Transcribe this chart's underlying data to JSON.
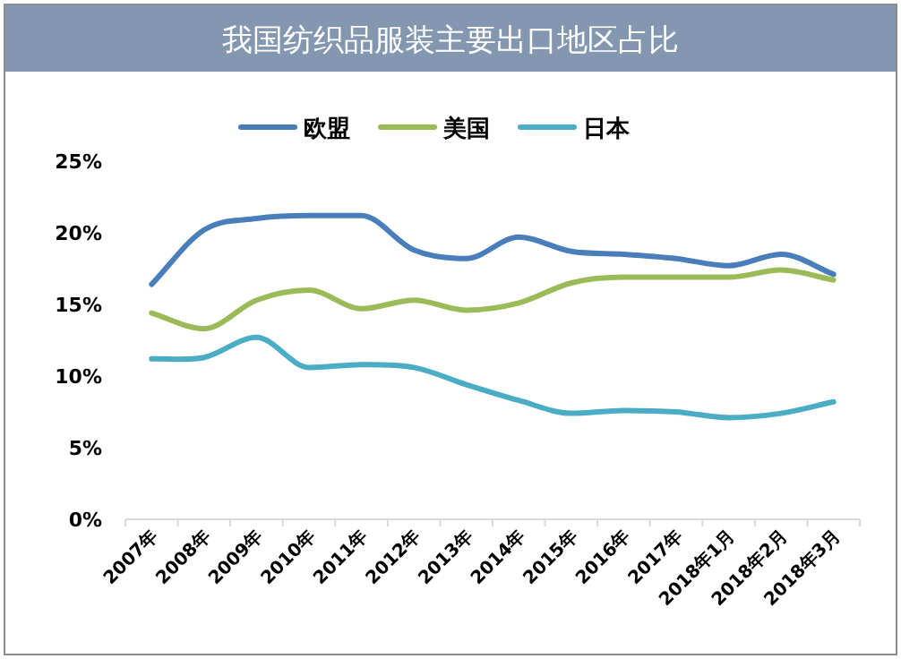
{
  "chart_data": {
    "type": "line",
    "title": "我国纺织品服装主要出口地区占比",
    "categories": [
      "2007年",
      "2008年",
      "2009年",
      "2010年",
      "2011年",
      "2012年",
      "2013年",
      "2014年",
      "2015年",
      "2016年",
      "2017年",
      "2018年1月",
      "2018年2月",
      "2018年3月"
    ],
    "series": [
      {
        "name": "欧盟",
        "color": "#4a7ebb",
        "values": [
          16.4,
          20.2,
          21.0,
          21.2,
          21.2,
          18.8,
          18.2,
          19.7,
          18.7,
          18.5,
          18.2,
          17.7,
          18.5,
          17.1
        ]
      },
      {
        "name": "美国",
        "color": "#9bbb59",
        "values": [
          14.4,
          13.3,
          15.3,
          16.0,
          14.7,
          15.3,
          14.6,
          15.1,
          16.5,
          16.9,
          16.9,
          16.9,
          17.4,
          16.7
        ]
      },
      {
        "name": "日本",
        "color": "#4bacc6",
        "values": [
          11.2,
          11.3,
          12.7,
          10.6,
          10.8,
          10.6,
          9.4,
          8.3,
          7.4,
          7.6,
          7.5,
          7.1,
          7.4,
          8.2
        ]
      }
    ],
    "ylim": [
      0,
      25
    ],
    "yticks": [
      {
        "value": 0,
        "label": "0%"
      },
      {
        "value": 5,
        "label": "5%"
      },
      {
        "value": 10,
        "label": "10%"
      },
      {
        "value": 15,
        "label": "15%"
      },
      {
        "value": 20,
        "label": "20%"
      },
      {
        "value": 25,
        "label": "25%"
      }
    ],
    "grid": false,
    "legend": "top"
  }
}
